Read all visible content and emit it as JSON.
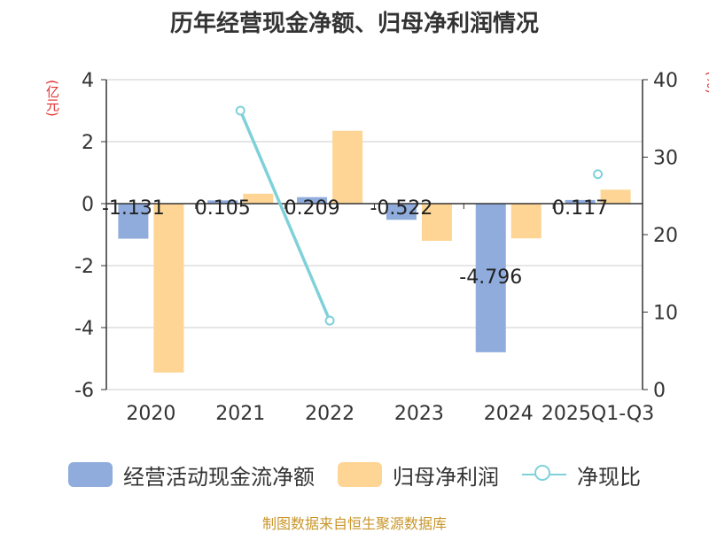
{
  "colors": {
    "cash_flow": "#8facdc",
    "net_profit": "#fed594",
    "ratio": "#7fd1d9",
    "axis": "#333333",
    "grid": "#cccccc",
    "unit": "#e0312f",
    "source": "#c8962b"
  },
  "chart_data": {
    "type": "bar",
    "title": "历年经营现金净额、归母净利润情况",
    "ylabel": "(亿元)",
    "y2label": "(%)",
    "categories": [
      "2020",
      "2021",
      "2022",
      "2023",
      "2024",
      "2025Q1-Q3"
    ],
    "ylim": [
      -6,
      4
    ],
    "yticks": [
      4,
      2,
      0,
      -2,
      -4,
      -6
    ],
    "y2lim": [
      0,
      40
    ],
    "y2ticks": [
      40,
      30,
      20,
      10,
      0
    ],
    "series": [
      {
        "name": "经营活动现金流净额",
        "kind": "bar",
        "axis": "left",
        "values": [
          -1.131,
          0.105,
          0.209,
          -0.522,
          -4.796,
          0.117
        ],
        "labels": [
          "-1.131",
          "0.105",
          "0.209",
          "-0.522",
          "-4.796",
          "0.117"
        ]
      },
      {
        "name": "归母净利润",
        "kind": "bar",
        "axis": "left",
        "values": [
          -5.45,
          0.32,
          2.35,
          -1.2,
          -1.12,
          0.45
        ]
      },
      {
        "name": "净现比",
        "kind": "line",
        "axis": "right",
        "values": [
          null,
          36.0,
          8.9,
          null,
          null,
          27.8
        ]
      }
    ]
  },
  "legend": {
    "cash_flow": "经营活动现金流净额",
    "net_profit": "归母净利润",
    "ratio": "净现比"
  },
  "source": "制图数据来自恒生聚源数据库"
}
